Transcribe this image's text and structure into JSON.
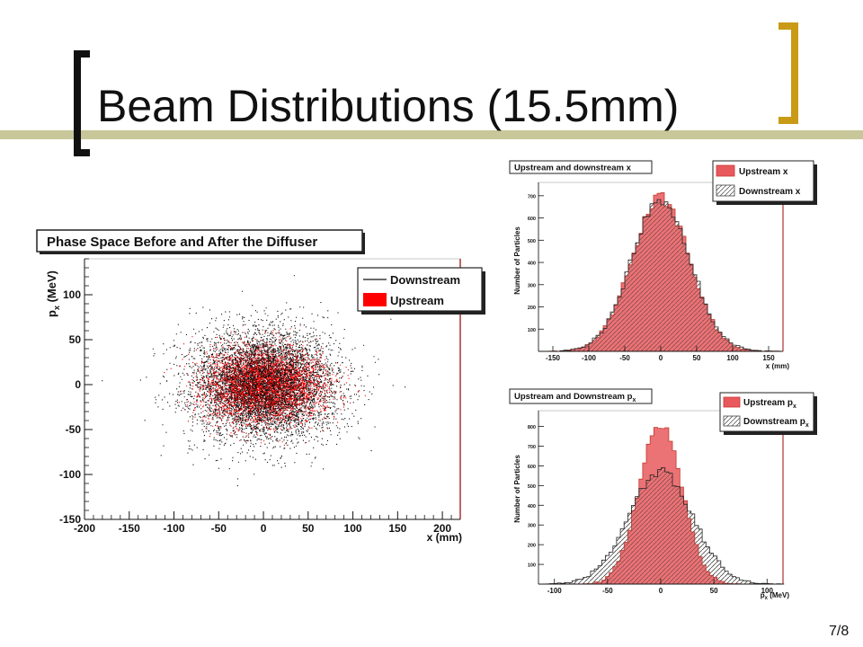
{
  "slide": {
    "title": "Beam Distributions (15.5mm)",
    "page": "7/8"
  },
  "colors": {
    "upstream": "#e8595d",
    "upstream_scatter": "#ff0000",
    "downstream": "#111111",
    "bracket_left": "#111111",
    "bracket_right": "#c99a15",
    "bar": "#c8c79a"
  },
  "chart_data": [
    {
      "type": "scatter",
      "title": "Phase Space Before and After the Diffuser",
      "xlabel": "x (mm)",
      "ylabel": "p",
      "ylabel_sub": "x",
      "ylabel_unit": " (MeV)",
      "xlim": [
        -200,
        220
      ],
      "ylim": [
        -150,
        140
      ],
      "xticks": [
        "-200",
        "-150",
        "-100",
        "-50",
        "0",
        "50",
        "100",
        "150",
        "200"
      ],
      "yticks": [
        "-150",
        "-100",
        "-50",
        "0",
        "50",
        "100"
      ],
      "legend": [
        {
          "label": "Downstream",
          "style": "line"
        },
        {
          "label": "Upstream",
          "style": "fill"
        }
      ],
      "legend_position": "top-right",
      "series": [
        {
          "name": "Downstream",
          "points": 6000,
          "sigma_x": 40,
          "sigma_y": 30
        },
        {
          "name": "Upstream",
          "points": 5000,
          "sigma_x": 32,
          "sigma_y": 20
        }
      ]
    },
    {
      "type": "bar",
      "title": "Upstream and downstream x",
      "xlabel": "x (mm)",
      "ylabel": "Number of Particles",
      "xlim": [
        -170,
        170
      ],
      "ylim": [
        0,
        760
      ],
      "xticks": [
        "-150",
        "-100",
        "-50",
        "0",
        "50",
        "100",
        "150"
      ],
      "yticks": [
        "100",
        "200",
        "300",
        "400",
        "500",
        "600",
        "700"
      ],
      "legend": [
        {
          "label": "Upstream x",
          "style": "fill"
        },
        {
          "label": "Downstream x",
          "style": "hatch"
        }
      ],
      "legend_position": "top-right",
      "series": [
        {
          "name": "Upstream x",
          "mean": 0,
          "sigma": 40,
          "peak": 690
        },
        {
          "name": "Downstream x",
          "mean": 0,
          "sigma": 41,
          "peak": 680
        }
      ]
    },
    {
      "type": "bar",
      "title": "Upstream and Downstream p",
      "title_sub": "x",
      "xlabel": "p",
      "xlabel_sub": "x",
      "xlabel_unit": " (MeV)",
      "ylabel": "Number of Particles",
      "xlim": [
        -115,
        115
      ],
      "ylim": [
        0,
        880
      ],
      "xticks": [
        "-100",
        "-50",
        "0",
        "50",
        "100"
      ],
      "yticks": [
        "100",
        "200",
        "300",
        "400",
        "500",
        "600",
        "700",
        "800"
      ],
      "legend": [
        {
          "label": "Upstream p",
          "sub": "x",
          "style": "fill"
        },
        {
          "label": "Downstream p",
          "sub": "x",
          "style": "hatch"
        }
      ],
      "legend_position": "top-right",
      "series": [
        {
          "name": "Upstream p",
          "mean": 0,
          "sigma": 20,
          "peak": 820
        },
        {
          "name": "Downstream p",
          "mean": 0,
          "sigma": 30,
          "peak": 570
        }
      ]
    }
  ]
}
